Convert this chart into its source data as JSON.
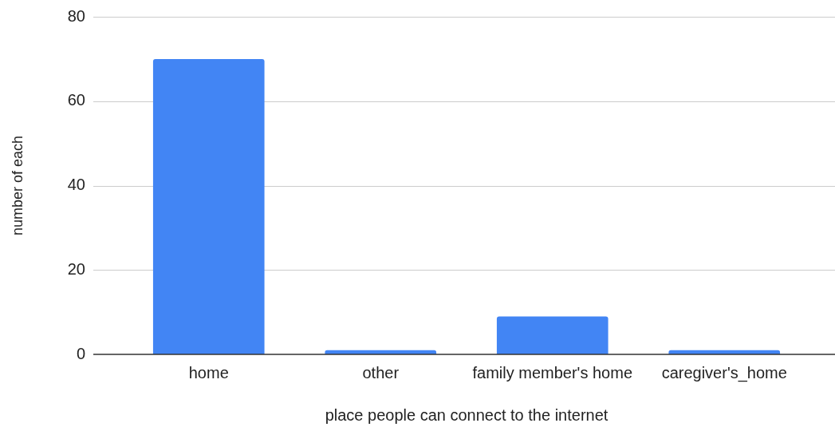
{
  "chart_data": {
    "type": "bar",
    "xlabel": "place people can connect to the internet",
    "ylabel": "number of each",
    "categories": [
      "home",
      "other",
      "family member's home",
      "caregiver's_home"
    ],
    "values": [
      70,
      1,
      9,
      1
    ],
    "color": "#4285f4",
    "ylim": [
      0,
      80
    ],
    "yticks": [
      0,
      20,
      40,
      60,
      80
    ],
    "grid": "y",
    "legend": false
  }
}
